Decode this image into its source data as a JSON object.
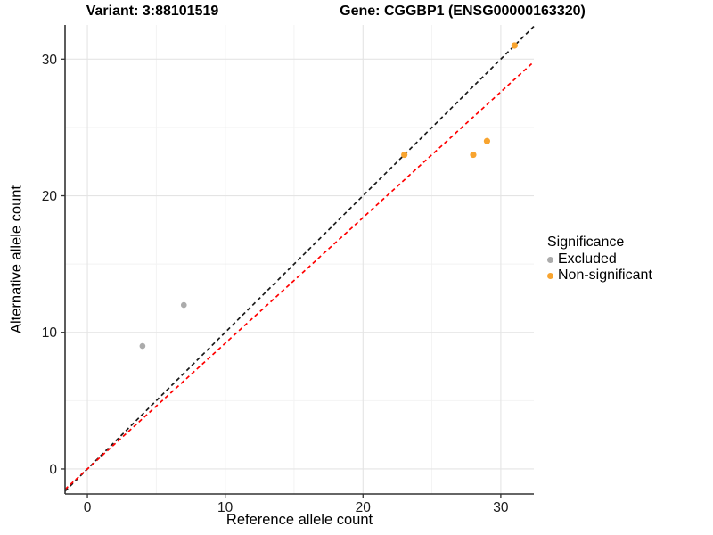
{
  "header": {
    "variant_title": "Variant: 3:88101519",
    "gene_title": "Gene: CGGBP1 (ENSG00000163320)"
  },
  "chart_data": {
    "type": "scatter",
    "xlabel": "Reference allele count",
    "ylabel": "Alternative allele count",
    "xlim": [
      -1.62,
      32.4
    ],
    "ylim": [
      -1.83,
      32.5
    ],
    "x_ticks": [
      0,
      10,
      20,
      30
    ],
    "y_ticks": [
      0,
      10,
      20,
      30
    ],
    "x_minor_ticks": [
      5,
      15,
      25
    ],
    "y_minor_ticks": [
      5,
      15,
      25
    ],
    "grid": true,
    "series": [
      {
        "name": "Excluded",
        "color": "#ABABAB",
        "radius": 3.3,
        "points": [
          [
            4,
            9
          ],
          [
            7,
            12
          ]
        ]
      },
      {
        "name": "Non-significant",
        "color": "#F8A42F",
        "radius": 3.6,
        "points": [
          [
            23,
            23
          ],
          [
            28,
            23
          ],
          [
            29,
            24
          ],
          [
            31,
            31
          ]
        ]
      }
    ],
    "lines": [
      {
        "name": "identity-line",
        "color": "#1A1A1A",
        "slope": 1.0,
        "intercept": 0,
        "dash": "4.5,3.5"
      },
      {
        "name": "expected-ratio-line",
        "color": "#FF0000",
        "slope": 0.92,
        "intercept": 0,
        "dash": "4.5,3.5"
      }
    ],
    "legend": {
      "title": "Significance",
      "position": "right",
      "items": [
        {
          "label": "Excluded",
          "color": "#ABABAB"
        },
        {
          "label": "Non-significant",
          "color": "#F8A42F"
        }
      ]
    },
    "colors": {
      "axis_line": "#333333",
      "tick_label": "#1A1A1A",
      "grid_major": "#E4E4E4",
      "grid_minor": "#F2F2F2",
      "background": "#FFFFFF"
    }
  }
}
